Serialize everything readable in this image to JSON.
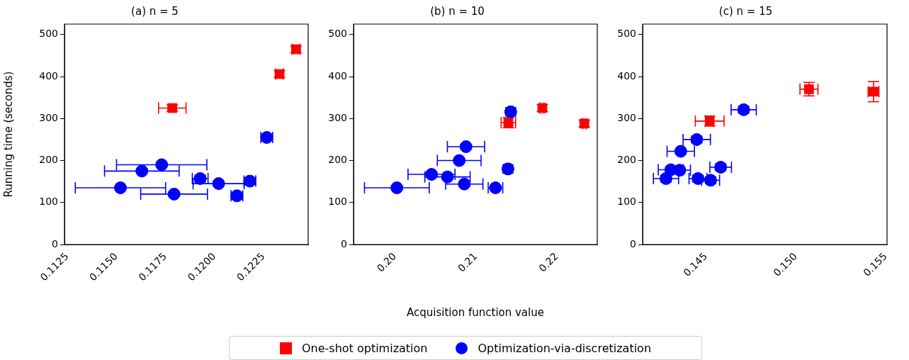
{
  "chart_data": [
    {
      "type": "scatter",
      "title": "(a) n = 5",
      "ylabel": "Running time (seconds)",
      "legend": "bottom",
      "xlim": [
        0.11236,
        0.12477
      ],
      "xticks": [
        {
          "value": 0.1125,
          "label": "0.1125"
        },
        {
          "value": 0.115,
          "label": "0.1150"
        },
        {
          "value": 0.1175,
          "label": "0.1175"
        },
        {
          "value": 0.12,
          "label": "0.1200"
        },
        {
          "value": 0.1225,
          "label": "0.1225"
        }
      ],
      "ylim": [
        0,
        525
      ],
      "yticks": [
        0,
        100,
        200,
        300,
        400,
        500
      ],
      "series": [
        {
          "name": "One-shot optimization",
          "color": "#ff0000",
          "marker": "square",
          "x": [
            0.11785,
            0.12331,
            0.12415
          ],
          "values": [
            325,
            406,
            465
          ],
          "xerrors": [
            0.0007,
            0.0002,
            0.0002
          ],
          "errors": [
            8,
            8,
            8
          ]
        },
        {
          "name": "Optimization-via-discretization",
          "color": "#0000ff",
          "marker": "circle",
          "x": [
            0.11521,
            0.1163,
            0.11731,
            0.11794,
            0.11927,
            0.12021,
            0.12114,
            0.1218,
            0.12266
          ],
          "values": [
            135,
            175,
            190,
            120,
            157,
            145,
            116,
            151,
            255
          ],
          "xerrors": [
            0.0023,
            0.0019,
            0.0023,
            0.0017,
            0.0004,
            0.0013,
            0.0003,
            0.0003,
            0.0003
          ],
          "errors": [
            5,
            5,
            5,
            5,
            8,
            5,
            8,
            8,
            8
          ]
        }
      ]
    },
    {
      "type": "scatter",
      "title": "(b) n = 10",
      "xlabel": "Acquisition function value",
      "xlim": [
        0.19488,
        0.22498
      ],
      "xticks": [
        {
          "value": 0.2,
          "label": "0.20"
        },
        {
          "value": 0.21,
          "label": "0.21"
        },
        {
          "value": 0.22,
          "label": "0.22"
        }
      ],
      "ylim": [
        0,
        525
      ],
      "yticks": [
        0,
        100,
        200,
        300,
        400,
        500
      ],
      "series": [
        {
          "color": "#ff0000",
          "marker": "square",
          "x": [
            0.214,
            0.2182,
            0.22338
          ],
          "values": [
            290,
            325,
            288
          ],
          "xerrors": [
            0.0009,
            0.0002,
            0.0002
          ],
          "errors": [
            12,
            8,
            8
          ]
        },
        {
          "color": "#0000ff",
          "marker": "circle",
          "x": [
            0.20023,
            0.20451,
            0.20648,
            0.20793,
            0.20877,
            0.20856,
            0.21241,
            0.21395,
            0.21429
          ],
          "values": [
            135,
            167,
            161,
            200,
            233,
            144,
            135,
            180,
            316
          ],
          "xerrors": [
            0.004,
            0.0029,
            0.0028,
            0.0027,
            0.0023,
            0.0023,
            0.0009,
            0.0003,
            0.0003
          ],
          "errors": [
            5,
            5,
            5,
            5,
            5,
            5,
            5,
            10,
            10
          ]
        }
      ]
    },
    {
      "type": "scatter",
      "title": "(c) n = 15",
      "xlim": [
        0.14148,
        0.15507
      ],
      "xticks": [
        0.145,
        {
          "value": 0.15,
          "label": "0.150"
        },
        0.155
      ],
      "ylim": [
        0,
        525
      ],
      "yticks": [
        0,
        100,
        200,
        300,
        400,
        500
      ],
      "series": [
        {
          "color": "#ff0000",
          "marker": "square",
          "x": [
            0.14521,
            0.15073,
            0.15432
          ],
          "values": [
            294,
            370,
            364
          ],
          "xerrors": [
            0.0008,
            0.0005,
            0.0003
          ],
          "errors": [
            12,
            16,
            24
          ]
        },
        {
          "color": "#0000ff",
          "marker": "circle",
          "x": [
            0.1471,
            0.14449,
            0.1436,
            0.14305,
            0.14354,
            0.14278,
            0.14456,
            0.14526,
            0.14582
          ],
          "values": [
            321,
            250,
            222,
            178,
            177,
            157,
            157,
            153,
            184
          ],
          "xerrors": [
            0.0007,
            0.00076,
            0.00076,
            0.0007,
            0.0006,
            0.0007,
            0.0005,
            0.0005,
            0.0006
          ],
          "errors": [
            8,
            8,
            5,
            8,
            8,
            8,
            8,
            8,
            8
          ]
        }
      ]
    }
  ]
}
